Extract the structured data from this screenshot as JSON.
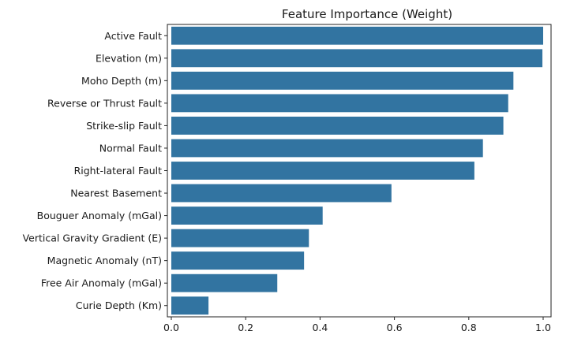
{
  "chart_data": {
    "type": "bar",
    "orientation": "horizontal",
    "title": "Feature Importance (Weight)",
    "xlabel": "",
    "ylabel": "",
    "xlim": [
      0,
      1.05
    ],
    "xticks": [
      "0.0",
      "0.2",
      "0.4",
      "0.6",
      "0.8",
      "1.0"
    ],
    "xtick_values": [
      0.0,
      0.2,
      0.4,
      0.6,
      0.8,
      1.0
    ],
    "grid": false,
    "bar_color": "#3274a1",
    "categories": [
      "Active Fault",
      "Elevation (m)",
      "Moho Depth (m)",
      "Reverse or Thrust Fault",
      "Strike-slip Fault",
      "Normal Fault",
      "Right-lateral Fault",
      "Nearest Basement",
      "Bouguer Anomaly (mGal)",
      "Vertical Gravity Gradient (E)",
      "Magnetic Anomaly (nT)",
      "Free Air Anomaly (mGal)",
      "Curie Depth (Km)"
    ],
    "values": [
      1.0,
      0.998,
      0.92,
      0.906,
      0.893,
      0.838,
      0.815,
      0.592,
      0.407,
      0.37,
      0.357,
      0.285,
      0.1
    ]
  }
}
